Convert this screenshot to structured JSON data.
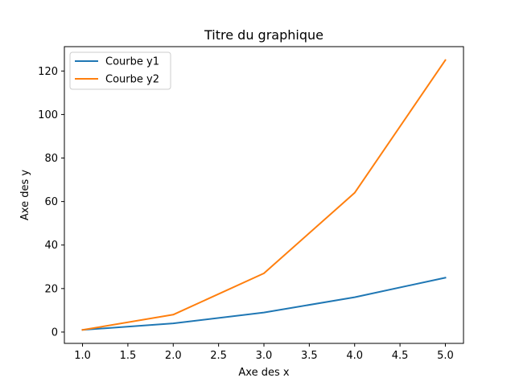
{
  "chart_data": {
    "type": "line",
    "title": "Titre du graphique",
    "xlabel": "Axe des x",
    "ylabel": "Axe des y",
    "x": [
      1,
      2,
      3,
      4,
      5
    ],
    "series": [
      {
        "name": "Courbe y1",
        "values": [
          1,
          4,
          9,
          16,
          25
        ],
        "color": "#1f77b4"
      },
      {
        "name": "Courbe y2",
        "values": [
          1,
          8,
          27,
          64,
          125
        ],
        "color": "#ff7f0e"
      }
    ],
    "xlim": [
      0.8,
      5.2
    ],
    "ylim": [
      -5.2,
      131.2
    ],
    "xticks": [
      1.0,
      1.5,
      2.0,
      2.5,
      3.0,
      3.5,
      4.0,
      4.5,
      5.0
    ],
    "xtick_labels": [
      "1.0",
      "1.5",
      "2.0",
      "2.5",
      "3.0",
      "3.5",
      "4.0",
      "4.5",
      "5.0"
    ],
    "yticks": [
      0,
      20,
      40,
      60,
      80,
      100,
      120
    ],
    "ytick_labels": [
      "0",
      "20",
      "40",
      "60",
      "80",
      "100",
      "120"
    ],
    "grid": false,
    "legend_position": "top-left"
  }
}
